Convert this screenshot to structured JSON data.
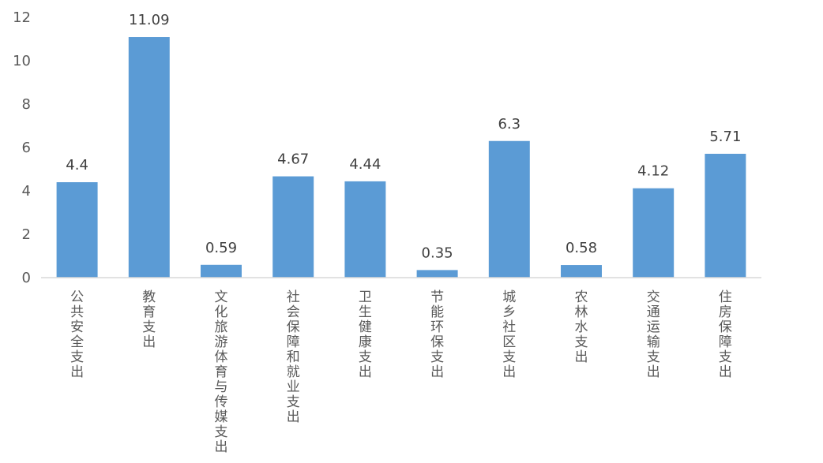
{
  "chart_data": {
    "type": "bar",
    "categories": [
      "公共安全支出",
      "教育支出",
      "文化旅游体育与传媒支出",
      "社会保障和就业支出",
      "卫生健康支出",
      "节能环保支出",
      "城乡社区支出",
      "农林水支出",
      "交通运输支出",
      "住房保障支出"
    ],
    "values": [
      4.4,
      11.09,
      0.59,
      4.67,
      4.44,
      0.35,
      6.3,
      0.58,
      4.12,
      5.71
    ],
    "data_labels": [
      "4.4",
      "11.09",
      "0.59",
      "4.67",
      "4.44",
      "0.35",
      "6.3",
      "0.58",
      "4.12",
      "5.71"
    ],
    "title": "",
    "xlabel": "",
    "ylabel": "",
    "ylim": [
      0,
      12
    ],
    "yticks": [
      "0",
      "2",
      "4",
      "6",
      "8",
      "10",
      "12"
    ],
    "grid": false,
    "legend": "none",
    "bar_color": "#5b9bd5",
    "axis_color": "#d9d9d9"
  }
}
